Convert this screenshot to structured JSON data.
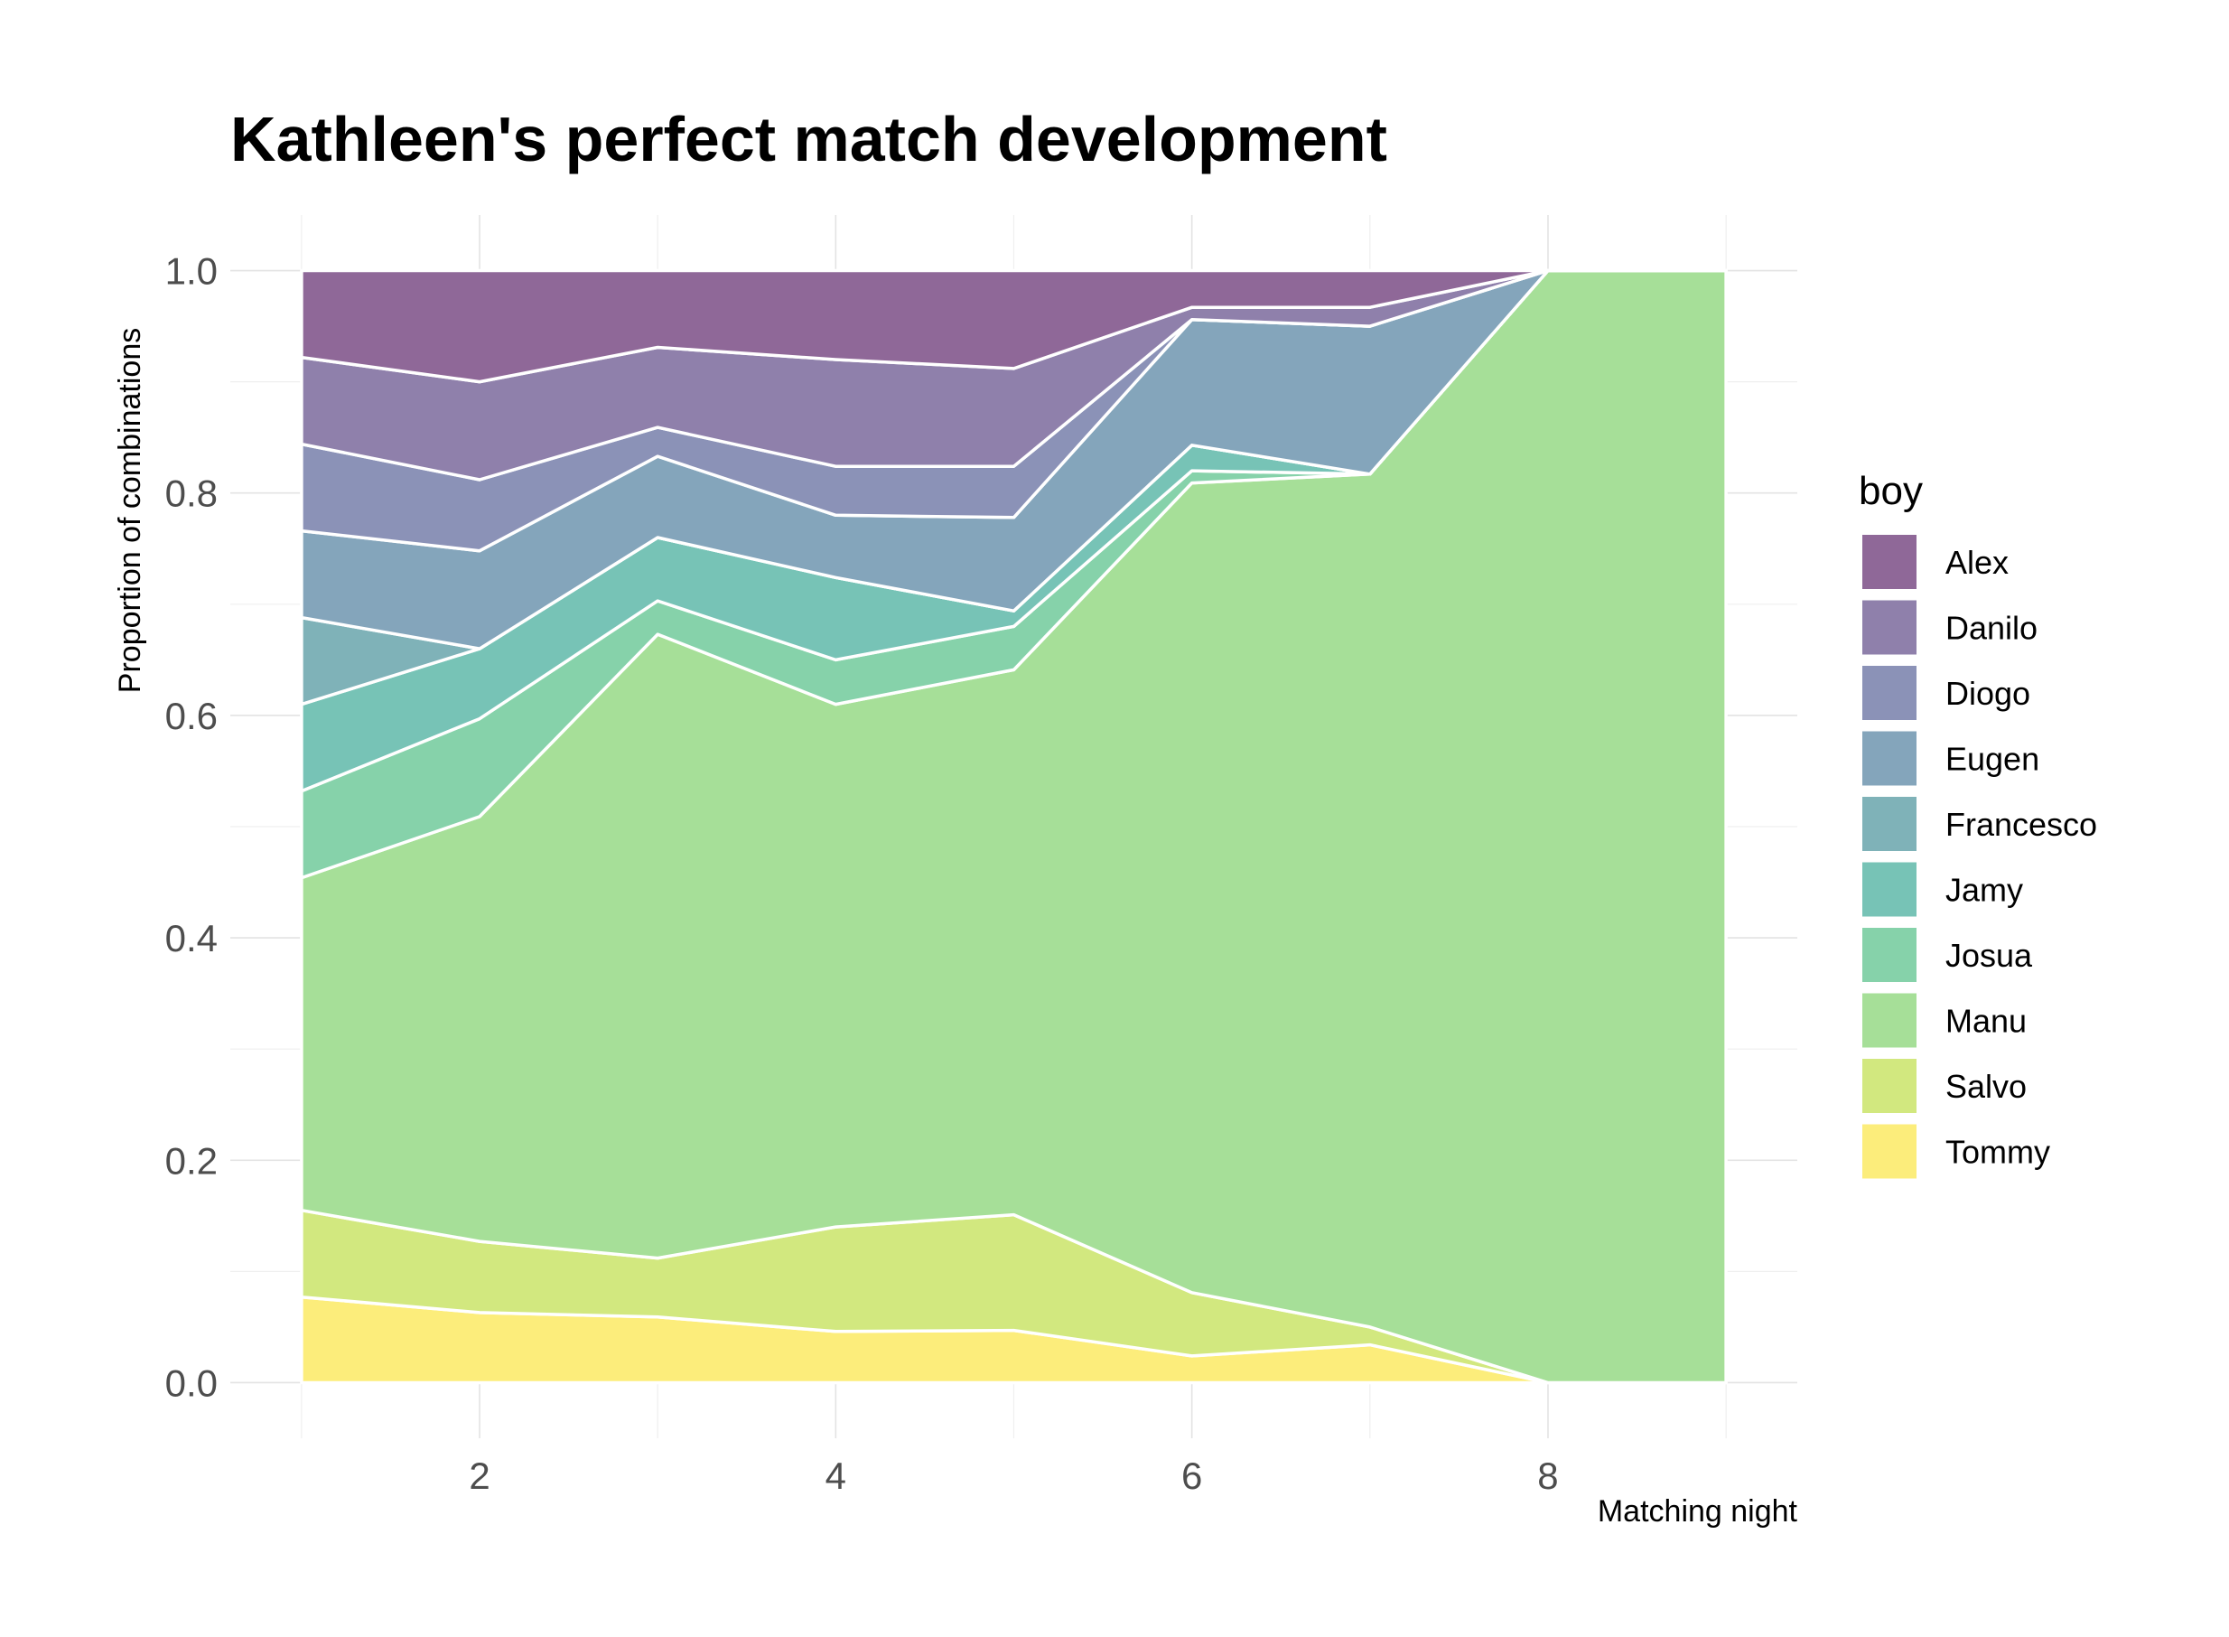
{
  "chart_data": {
    "type": "area",
    "stacked": true,
    "title": "Kathleen's perfect match development",
    "xlabel": "Matching night",
    "ylabel": "Proportion of combinations",
    "x": [
      1,
      2,
      3,
      4,
      5,
      6,
      7,
      8,
      9
    ],
    "xlim": [
      0.6,
      9.4
    ],
    "ylim": [
      -0.05,
      1.05
    ],
    "x_ticks": [
      2,
      4,
      6,
      8
    ],
    "y_ticks": [
      0.0,
      0.2,
      0.4,
      0.6,
      0.8,
      1.0
    ],
    "y_tick_labels": [
      "0.0",
      "0.2",
      "0.4",
      "0.6",
      "0.8",
      "1.0"
    ],
    "x_tick_labels": [
      "2",
      "4",
      "6",
      "8"
    ],
    "grid": true,
    "legend_title": "boy",
    "legend_position": "right",
    "series": [
      {
        "name": "Alex",
        "color": "#8f6898",
        "values": [
          0.078,
          0.1,
          0.069,
          0.08,
          0.088,
          0.033,
          0.033,
          0.0,
          0.0
        ]
      },
      {
        "name": "Danilo",
        "color": "#8f80ab",
        "values": [
          0.078,
          0.088,
          0.072,
          0.096,
          0.088,
          0.011,
          0.017,
          0.0,
          0.0
        ]
      },
      {
        "name": "Diogo",
        "color": "#8b92b7",
        "values": [
          0.078,
          0.064,
          0.026,
          0.044,
          0.046,
          0.0,
          0.0,
          0.0,
          0.0
        ]
      },
      {
        "name": "Eugen",
        "color": "#84a5bb",
        "values": [
          0.078,
          0.088,
          0.073,
          0.056,
          0.084,
          0.113,
          0.133,
          0.0,
          0.0
        ]
      },
      {
        "name": "Francesco",
        "color": "#7fb2b8",
        "values": [
          0.078,
          0.0,
          0.0,
          0.0,
          0.0,
          0.0,
          0.0,
          0.0,
          0.0
        ]
      },
      {
        "name": "Jamy",
        "color": "#77c3b6",
        "values": [
          0.078,
          0.063,
          0.057,
          0.074,
          0.014,
          0.023,
          0.0,
          0.0,
          0.0
        ]
      },
      {
        "name": "Josua",
        "color": "#86d2aa",
        "values": [
          0.078,
          0.088,
          0.03,
          0.04,
          0.039,
          0.011,
          0.0,
          0.0,
          0.0
        ]
      },
      {
        "name": "Manu",
        "color": "#a6df98",
        "values": [
          0.299,
          0.382,
          0.561,
          0.47,
          0.49,
          0.728,
          0.767,
          1.0,
          1.0
        ]
      },
      {
        "name": "Salvo",
        "color": "#d2e87f",
        "values": [
          0.078,
          0.064,
          0.053,
          0.094,
          0.104,
          0.057,
          0.016,
          0.0,
          0.0
        ]
      },
      {
        "name": "Tommy",
        "color": "#fced7b",
        "values": [
          0.077,
          0.063,
          0.059,
          0.046,
          0.047,
          0.024,
          0.034,
          0.0,
          0.0
        ]
      }
    ]
  }
}
